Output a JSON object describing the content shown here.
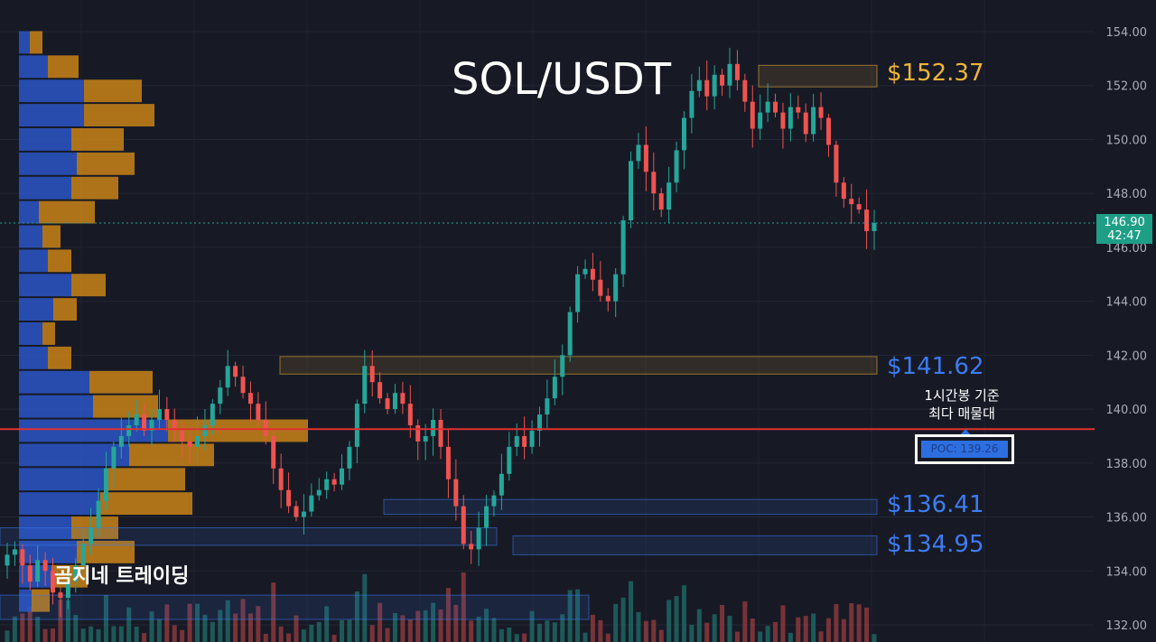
{
  "title": "SOL/USDT",
  "watermark": "곰지네 트레이딩",
  "poc_note": {
    "line1": "1시간봉 기준",
    "line2": "최다 매물대"
  },
  "poc_label": "POC: 139.26",
  "current_price": {
    "price": "146.90",
    "countdown": "42:47"
  },
  "levels": [
    {
      "label": "$152.37",
      "color": "#f0b43a"
    },
    {
      "label": "$141.62",
      "color": "#3d7cf2"
    },
    {
      "label": "$136.41",
      "color": "#3d7cf2"
    },
    {
      "label": "$134.95",
      "color": "#3d7cf2"
    }
  ],
  "colors": {
    "background": "#171a25",
    "up": "#26a69a",
    "down": "#ef5350",
    "poc_line": "#e03030",
    "profile_buy": "#2a56c6",
    "profile_sell": "#d48a17"
  },
  "chart_data": {
    "type": "candlestick",
    "ylim": [
      131.5,
      154.5
    ],
    "y_ticks": [
      "154.00",
      "152.00",
      "150.00",
      "148.00",
      "146.00",
      "144.00",
      "142.00",
      "140.00",
      "138.00",
      "136.00",
      "134.00",
      "132.00"
    ],
    "current_price": 146.9,
    "poc": 139.26,
    "key_levels": [
      152.37,
      141.62,
      136.41,
      134.95
    ],
    "zones": [
      {
        "low": 151.95,
        "high": 152.75,
        "kind": "supply",
        "color": "#f0b43a"
      },
      {
        "low": 141.3,
        "high": 141.95,
        "kind": "supply",
        "color": "#f0b43a"
      },
      {
        "low": 136.1,
        "high": 136.65,
        "kind": "demand",
        "color": "#3d7cf2"
      },
      {
        "low": 134.6,
        "high": 135.3,
        "kind": "demand",
        "color": "#3d7cf2"
      },
      {
        "low": 134.95,
        "high": 135.6,
        "kind": "demand",
        "color": "#3d7cf2"
      },
      {
        "low": 132.2,
        "high": 133.1,
        "kind": "demand",
        "color": "#3d7cf2"
      }
    ],
    "close_path": [
      134.6,
      134.8,
      134.2,
      133.6,
      134.4,
      134.0,
      133.2,
      133.0,
      133.6,
      134.2,
      135.0,
      135.6,
      136.6,
      137.8,
      138.6,
      139.0,
      139.4,
      139.8,
      139.2,
      139.6,
      140.0,
      139.6,
      139.2,
      138.8,
      138.6,
      139.0,
      139.4,
      140.2,
      140.8,
      141.6,
      141.2,
      140.6,
      140.2,
      139.6,
      139.0,
      137.8,
      137.0,
      136.4,
      136.0,
      136.2,
      136.8,
      137.0,
      137.4,
      137.2,
      137.8,
      138.6,
      140.2,
      141.6,
      141.0,
      140.4,
      140.0,
      140.6,
      140.2,
      139.4,
      138.8,
      139.0,
      139.6,
      138.6,
      137.4,
      136.4,
      135.0,
      134.8,
      135.6,
      136.4,
      136.8,
      137.6,
      138.6,
      139.0,
      138.6,
      139.2,
      139.8,
      140.4,
      141.2,
      142.0,
      143.6,
      145.0,
      145.2,
      144.8,
      144.2,
      144.0,
      145.0,
      147.0,
      149.2,
      149.8,
      148.8,
      148.0,
      147.4,
      148.4,
      149.6,
      150.8,
      151.8,
      152.2,
      151.6,
      152.4,
      152.0,
      152.8,
      152.2,
      151.4,
      150.4,
      151.0,
      151.4,
      151.0,
      150.4,
      151.2,
      151.0,
      150.2,
      151.2,
      150.8,
      149.8,
      148.4,
      147.8,
      147.6,
      147.4,
      146.6,
      146.9
    ],
    "volume_profile": [
      {
        "price": 153.6,
        "buy": 12,
        "sell": 14
      },
      {
        "price": 152.7,
        "buy": 32,
        "sell": 34
      },
      {
        "price": 151.8,
        "buy": 72,
        "sell": 64
      },
      {
        "price": 150.9,
        "buy": 72,
        "sell": 78
      },
      {
        "price": 150.0,
        "buy": 58,
        "sell": 58
      },
      {
        "price": 149.1,
        "buy": 64,
        "sell": 64
      },
      {
        "price": 148.2,
        "buy": 58,
        "sell": 52
      },
      {
        "price": 147.3,
        "buy": 22,
        "sell": 62
      },
      {
        "price": 146.4,
        "buy": 26,
        "sell": 20
      },
      {
        "price": 145.5,
        "buy": 32,
        "sell": 26
      },
      {
        "price": 144.6,
        "buy": 58,
        "sell": 38
      },
      {
        "price": 143.7,
        "buy": 38,
        "sell": 26
      },
      {
        "price": 142.8,
        "buy": 26,
        "sell": 14
      },
      {
        "price": 141.9,
        "buy": 32,
        "sell": 26
      },
      {
        "price": 141.0,
        "buy": 78,
        "sell": 70
      },
      {
        "price": 140.1,
        "buy": 82,
        "sell": 72
      },
      {
        "price": 139.2,
        "buy": 165,
        "sell": 155
      },
      {
        "price": 138.3,
        "buy": 122,
        "sell": 94
      },
      {
        "price": 137.4,
        "buy": 98,
        "sell": 86
      },
      {
        "price": 136.5,
        "buy": 90,
        "sell": 102
      },
      {
        "price": 135.6,
        "buy": 58,
        "sell": 52
      },
      {
        "price": 134.7,
        "buy": 64,
        "sell": 64
      },
      {
        "price": 133.8,
        "buy": 36,
        "sell": 40
      },
      {
        "price": 132.9,
        "buy": 14,
        "sell": 20
      }
    ]
  }
}
